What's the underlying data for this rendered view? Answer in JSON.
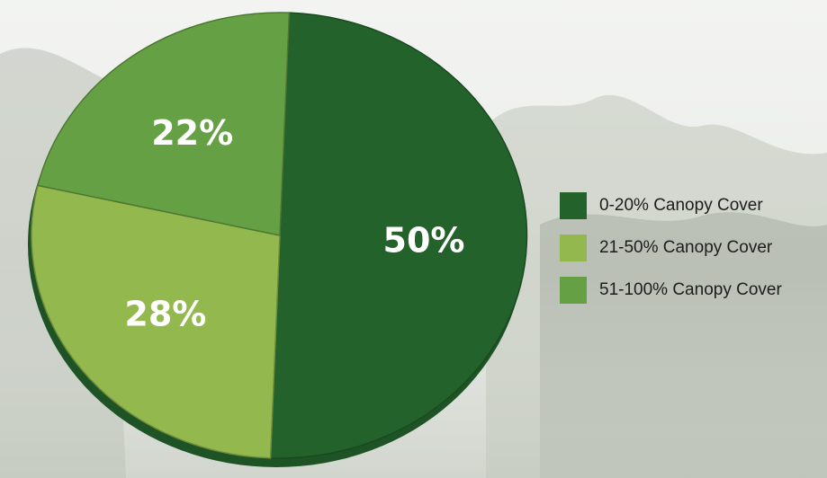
{
  "chart_data": {
    "type": "pie",
    "categories": [
      "0-20% Canopy Cover",
      "21-50% Canopy Cover",
      "51-100% Canopy Cover"
    ],
    "values": [
      50,
      28,
      22
    ],
    "labels": [
      "50%",
      "28%",
      "22%"
    ],
    "colors": [
      "#23622b",
      "#93b94e",
      "#66a044"
    ],
    "legend": "right",
    "title": ""
  },
  "legend": {
    "items": [
      {
        "label": "0-20% Canopy Cover",
        "color": "#23622b"
      },
      {
        "label": "21-50% Canopy Cover",
        "color": "#93b94e"
      },
      {
        "label": "51-100% Canopy Cover",
        "color": "#66a044"
      }
    ]
  }
}
